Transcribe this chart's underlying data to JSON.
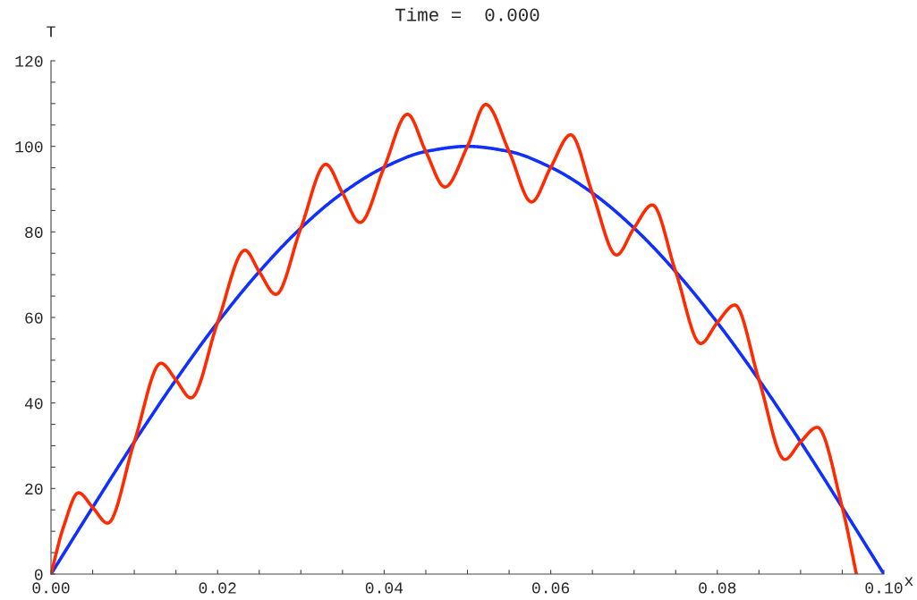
{
  "chart_data": {
    "type": "line",
    "title": "Time =  0.000",
    "xlabel": "x",
    "ylabel": "T",
    "series": [
      {
        "color": "#1030ff",
        "x": [
          0,
          0.005,
          0.01,
          0.015,
          0.02,
          0.025,
          0.03,
          0.035,
          0.04,
          0.045,
          0.05,
          0.055,
          0.06,
          0.065,
          0.07,
          0.075,
          0.08,
          0.085,
          0.09,
          0.095,
          0.1
        ],
        "values": [
          0,
          15.6,
          30.9,
          45.4,
          58.8,
          70.7,
          80.9,
          89.1,
          95.1,
          98.8,
          100,
          98.8,
          95.1,
          89.1,
          80.9,
          70.7,
          58.8,
          45.4,
          30.9,
          15.6,
          0
        ]
      },
      {
        "color": "#ff2a00",
        "x": [
          0,
          0.0015,
          0.0033,
          0.005,
          0.0068,
          0.01,
          0.0132,
          0.015,
          0.0168,
          0.02,
          0.0233,
          0.025,
          0.027,
          0.03,
          0.033,
          0.035,
          0.0371,
          0.04,
          0.0428,
          0.045,
          0.0473,
          0.05,
          0.0522,
          0.055,
          0.0577,
          0.06,
          0.0624,
          0.065,
          0.0679,
          0.07,
          0.0722,
          0.075,
          0.078,
          0.08,
          0.0821,
          0.085,
          0.0881,
          0.09,
          0.092,
          0.095,
          0.0967
        ],
        "values": [
          0,
          11,
          19,
          15.6,
          11.9,
          30.9,
          49.3,
          45.4,
          41.2,
          58.8,
          75.7,
          70.7,
          65.4,
          80.9,
          95.8,
          89.1,
          82.2,
          95.1,
          107.5,
          98.8,
          90.5,
          100,
          109.8,
          98.8,
          87,
          95.1,
          102.7,
          89.1,
          74.6,
          80.9,
          86.3,
          70.7,
          53.9,
          58.8,
          62.9,
          45.4,
          26.8,
          30.9,
          34.3,
          15.6,
          0
        ]
      }
    ],
    "xlim": [
      0,
      0.1
    ],
    "ylim": [
      0,
      120
    ],
    "xticks": [
      {
        "value": 0,
        "label": "0.00"
      },
      {
        "value": 0.005,
        "label": null
      },
      {
        "value": 0.01,
        "label": null
      },
      {
        "value": 0.015,
        "label": null
      },
      {
        "value": 0.02,
        "label": "0.02"
      },
      {
        "value": 0.025,
        "label": null
      },
      {
        "value": 0.03,
        "label": null
      },
      {
        "value": 0.035,
        "label": null
      },
      {
        "value": 0.04,
        "label": "0.04"
      },
      {
        "value": 0.045,
        "label": null
      },
      {
        "value": 0.05,
        "label": null
      },
      {
        "value": 0.055,
        "label": null
      },
      {
        "value": 0.06,
        "label": "0.06"
      },
      {
        "value": 0.065,
        "label": null
      },
      {
        "value": 0.07,
        "label": null
      },
      {
        "value": 0.075,
        "label": null
      },
      {
        "value": 0.08,
        "label": "0.08"
      },
      {
        "value": 0.085,
        "label": null
      },
      {
        "value": 0.09,
        "label": null
      },
      {
        "value": 0.095,
        "label": null
      },
      {
        "value": 0.1,
        "label": "0.10"
      }
    ],
    "yticks": [
      0,
      {
        "value": 5,
        "label": null
      },
      {
        "value": 10,
        "label": null
      },
      {
        "value": 15,
        "label": null
      },
      20,
      {
        "value": 25,
        "label": null
      },
      {
        "value": 30,
        "label": null
      },
      {
        "value": 35,
        "label": null
      },
      40,
      {
        "value": 45,
        "label": null
      },
      {
        "value": 50,
        "label": null
      },
      {
        "value": 55,
        "label": null
      },
      60,
      {
        "value": 65,
        "label": null
      },
      {
        "value": 70,
        "label": null
      },
      {
        "value": 75,
        "label": null
      },
      80,
      {
        "value": 85,
        "label": null
      },
      {
        "value": 90,
        "label": null
      },
      {
        "value": 95,
        "label": null
      },
      100,
      {
        "value": 105,
        "label": null
      },
      {
        "value": 110,
        "label": null
      },
      {
        "value": 115,
        "label": null
      },
      120
    ],
    "grid": false,
    "legend": false,
    "line_style": "solid"
  }
}
